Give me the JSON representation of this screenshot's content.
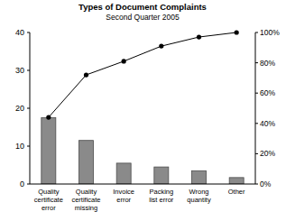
{
  "chart_data": {
    "type": "bar",
    "title": "Types of Document Complaints",
    "subtitle": "Second Quarter 2005",
    "categories": [
      "Quality certificate error",
      "Quality certificate missing",
      "Invoice error",
      "Packing list error",
      "Wrong quantity",
      "Other"
    ],
    "series": [
      {
        "type": "bar",
        "color": "#8a8a8a",
        "values": [
          17.5,
          11.5,
          5.5,
          4.5,
          3.5,
          1.7
        ]
      },
      {
        "type": "line",
        "color": "#000000",
        "marker": "circle",
        "axis": "y2",
        "values": [
          44,
          72,
          81,
          91,
          97,
          100
        ]
      }
    ],
    "ylim": [
      0,
      40
    ],
    "yticks": [
      0,
      10,
      20,
      30,
      40
    ],
    "y2lim": [
      0,
      100
    ],
    "y2ticks": [
      {
        "value": 0,
        "label": "0%"
      },
      {
        "value": 20,
        "label": "20%"
      },
      {
        "value": 40,
        "label": "40%"
      },
      {
        "value": 60,
        "label": "60%"
      },
      {
        "value": 80,
        "label": "80%"
      },
      {
        "value": 100,
        "label": "100%"
      }
    ],
    "grid": false
  }
}
